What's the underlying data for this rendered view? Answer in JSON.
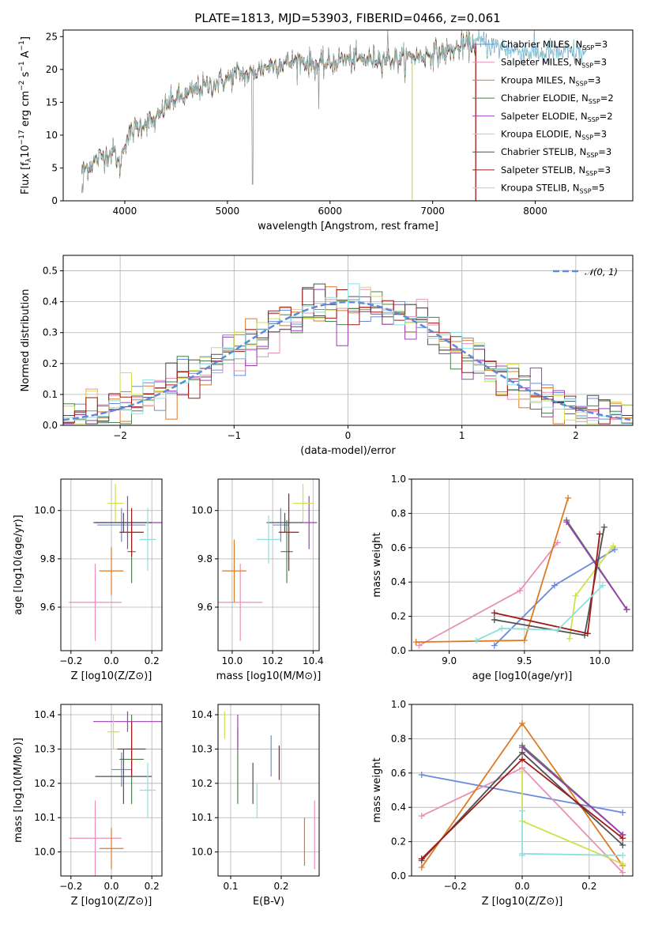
{
  "title": "PLATE=1813, MJD=53903, FIBERID=0466, z=0.061",
  "colors": {
    "Chabrier MILES": "#6a8bdb",
    "Salpeter MILES": "#e98fb8",
    "Kroupa MILES": "#de7a22",
    "Chabrier ELODIE": "#4e7f4e",
    "Salpeter ELODIE": "#9c3fb5",
    "Kroupa ELODIE": "#d2e04b",
    "Chabrier STELIB": "#505050",
    "Salpeter STELIB": "#a11a1a",
    "Kroupa STELIB": "#8ee0e0"
  },
  "chart_data": [
    {
      "id": "spectrum",
      "type": "line",
      "xlabel": "wavelength [Angstrom, rest frame]",
      "ylabel": "Flux [f_λ10^-17 erg cm^-2 s^-1 A^-1]",
      "xlim": [
        3400,
        8950
      ],
      "ylim": [
        0,
        26
      ],
      "xticks": [
        4000,
        5000,
        6000,
        7000,
        8000
      ],
      "yticks": [
        0,
        5,
        10,
        15,
        20,
        25
      ],
      "grid": false,
      "legend_position": "right",
      "legend": [
        {
          "name": "Chabrier MILES",
          "nssp": 3
        },
        {
          "name": "Salpeter MILES",
          "nssp": 3
        },
        {
          "name": "Kroupa MILES",
          "nssp": 3
        },
        {
          "name": "Chabrier ELODIE",
          "nssp": 2
        },
        {
          "name": "Salpeter ELODIE",
          "nssp": 2
        },
        {
          "name": "Kroupa ELODIE",
          "nssp": 3
        },
        {
          "name": "Chabrier STELIB",
          "nssp": 3
        },
        {
          "name": "Salpeter STELIB",
          "nssp": 3
        },
        {
          "name": "Kroupa STELIB",
          "nssp": 5
        }
      ],
      "continuum": [
        [
          3580,
          4.5
        ],
        [
          3700,
          6
        ],
        [
          3800,
          7
        ],
        [
          3900,
          7.5
        ],
        [
          3950,
          5
        ],
        [
          4000,
          9
        ],
        [
          4100,
          11
        ],
        [
          4200,
          12
        ],
        [
          4300,
          12
        ],
        [
          4400,
          14.5
        ],
        [
          4500,
          15.5
        ],
        [
          4600,
          16
        ],
        [
          4700,
          17
        ],
        [
          4800,
          17.5
        ],
        [
          4900,
          18
        ],
        [
          5000,
          18.5
        ],
        [
          5100,
          19.5
        ],
        [
          5200,
          19
        ],
        [
          5300,
          20
        ],
        [
          5400,
          20.5
        ],
        [
          5500,
          21
        ],
        [
          5600,
          21
        ],
        [
          5700,
          21.5
        ],
        [
          5800,
          21
        ],
        [
          5900,
          20.5
        ],
        [
          6000,
          21
        ],
        [
          6100,
          21.5
        ],
        [
          6200,
          21.5
        ],
        [
          6300,
          21.5
        ],
        [
          6400,
          21.5
        ],
        [
          6500,
          21.8
        ],
        [
          6600,
          21.5
        ],
        [
          6700,
          21.5
        ],
        [
          6800,
          22
        ],
        [
          6900,
          22
        ],
        [
          7000,
          22.5
        ],
        [
          7100,
          22.5
        ],
        [
          7200,
          23
        ],
        [
          7300,
          23.5
        ],
        [
          7400,
          24
        ],
        [
          7500,
          24
        ],
        [
          7600,
          23.5
        ],
        [
          7800,
          23
        ],
        [
          8000,
          22.5
        ],
        [
          8200,
          22.5
        ],
        [
          8500,
          22.5
        ]
      ]
    },
    {
      "id": "residuals",
      "type": "histogram",
      "xlabel": "(data-model)/error",
      "ylabel": "Normed distribution",
      "xlim": [
        -2.5,
        2.5
      ],
      "ylim": [
        0,
        0.55
      ],
      "xticks": [
        -2,
        -1,
        0,
        1,
        2
      ],
      "yticks": [
        0,
        0.1,
        0.2,
        0.3,
        0.4,
        0.5
      ],
      "grid": true,
      "reference_curve": {
        "name": "𝒩(0, 1)",
        "mean": 0,
        "sigma": 1
      },
      "legend_position": "top-right"
    },
    {
      "id": "z-age",
      "type": "scatter",
      "xlabel": "Z [log10(Z/Z⊙)]",
      "ylabel": "age  [log10(age/yr)]",
      "xlim": [
        -0.25,
        0.25
      ],
      "ylim": [
        9.42,
        10.13
      ],
      "xticks": [
        -0.2,
        0,
        0.2
      ],
      "yticks": [
        9.6,
        9.8,
        10.0
      ],
      "grid": true,
      "points": [
        {
          "s": "Chabrier MILES",
          "x": 0.05,
          "y": 9.94,
          "xe": 0.12,
          "ye": 0.07
        },
        {
          "s": "Salpeter MILES",
          "x": -0.08,
          "y": 9.62,
          "xe": 0.13,
          "ye": 0.16
        },
        {
          "s": "Kroupa MILES",
          "x": 0.0,
          "y": 9.75,
          "xe": 0.06,
          "ye": 0.1
        },
        {
          "s": "Chabrier ELODIE",
          "x": 0.1,
          "y": 9.83,
          "xe": 0.02,
          "ye": 0.13
        },
        {
          "s": "Salpeter ELODIE",
          "x": 0.08,
          "y": 9.95,
          "xe": 0.17,
          "ye": 0.11
        },
        {
          "s": "Kroupa ELODIE",
          "x": 0.02,
          "y": 10.03,
          "xe": 0.04,
          "ye": 0.08
        },
        {
          "s": "Chabrier STELIB",
          "x": 0.06,
          "y": 9.95,
          "xe": 0.14,
          "ye": 0.04
        },
        {
          "s": "Salpeter STELIB",
          "x": 0.1,
          "y": 9.91,
          "xe": 0.06,
          "ye": 0.1
        },
        {
          "s": "Kroupa STELIB",
          "x": 0.18,
          "y": 9.88,
          "xe": 0.04,
          "ye": 0.13
        }
      ]
    },
    {
      "id": "mass-age",
      "type": "scatter",
      "xlabel": "mass [log10(M/M⊙)]",
      "ylabel": "",
      "xlim": [
        9.93,
        10.43
      ],
      "ylim": [
        9.42,
        10.13
      ],
      "xticks": [
        10.0,
        10.2,
        10.4
      ],
      "yticks": [
        9.6,
        9.8,
        10.0
      ],
      "grid": true,
      "points": [
        {
          "s": "Chabrier MILES",
          "x": 10.24,
          "y": 9.94,
          "xe": 0.04,
          "ye": 0.07
        },
        {
          "s": "Salpeter MILES",
          "x": 10.04,
          "y": 9.62,
          "xe": 0.11,
          "ye": 0.16
        },
        {
          "s": "Kroupa MILES",
          "x": 10.01,
          "y": 9.75,
          "xe": 0.06,
          "ye": 0.13
        },
        {
          "s": "Chabrier ELODIE",
          "x": 10.27,
          "y": 9.83,
          "xe": 0.03,
          "ye": 0.13
        },
        {
          "s": "Salpeter ELODIE",
          "x": 10.38,
          "y": 9.95,
          "xe": 0.04,
          "ye": 0.11
        },
        {
          "s": "Kroupa ELODIE",
          "x": 10.35,
          "y": 10.03,
          "xe": 0.05,
          "ye": 0.08
        },
        {
          "s": "Chabrier STELIB",
          "x": 10.26,
          "y": 9.95,
          "xe": 0.09,
          "ye": 0.04
        },
        {
          "s": "Salpeter STELIB",
          "x": 10.28,
          "y": 9.91,
          "xe": 0.05,
          "ye": 0.16
        },
        {
          "s": "Kroupa STELIB",
          "x": 10.18,
          "y": 9.88,
          "xe": 0.06,
          "ye": 0.1
        }
      ]
    },
    {
      "id": "age-weight",
      "type": "line",
      "xlabel": "age  [log10(age/yr)]",
      "ylabel": "mass weight",
      "xlim": [
        8.75,
        10.22
      ],
      "ylim": [
        0,
        1.0
      ],
      "xticks": [
        9.0,
        9.5,
        10.0
      ],
      "yticks": [
        0.0,
        0.2,
        0.4,
        0.6,
        0.8,
        1.0
      ],
      "grid": true,
      "series": [
        {
          "s": "Chabrier MILES",
          "x": [
            9.3,
            9.7,
            10.1
          ],
          "y": [
            0.03,
            0.38,
            0.59
          ]
        },
        {
          "s": "Salpeter MILES",
          "x": [
            8.8,
            9.47,
            9.72
          ],
          "y": [
            0.03,
            0.35,
            0.63
          ]
        },
        {
          "s": "Kroupa MILES",
          "x": [
            8.78,
            9.5,
            9.79
          ],
          "y": [
            0.05,
            0.06,
            0.89
          ]
        },
        {
          "s": "Chabrier ELODIE",
          "x": [
            9.78,
            10.18
          ],
          "y": [
            0.76,
            0.24
          ]
        },
        {
          "s": "Salpeter ELODIE",
          "x": [
            9.78,
            10.18
          ],
          "y": [
            0.75,
            0.24
          ]
        },
        {
          "s": "Kroupa ELODIE",
          "x": [
            9.8,
            9.84,
            10.09
          ],
          "y": [
            0.07,
            0.32,
            0.61
          ]
        },
        {
          "s": "Chabrier STELIB",
          "x": [
            9.3,
            9.9,
            10.03
          ],
          "y": [
            0.18,
            0.09,
            0.72
          ]
        },
        {
          "s": "Salpeter STELIB",
          "x": [
            9.3,
            9.92,
            10.0
          ],
          "y": [
            0.22,
            0.1,
            0.68
          ]
        },
        {
          "s": "Kroupa STELIB",
          "x": [
            9.18,
            9.35,
            9.72,
            10.02
          ],
          "y": [
            0.06,
            0.13,
            0.12,
            0.38
          ]
        }
      ]
    },
    {
      "id": "z-mass",
      "type": "scatter",
      "xlabel": "Z [log10(Z/Z⊙)]",
      "ylabel": "mass [log10(M/M⊙)]",
      "xlim": [
        -0.25,
        0.25
      ],
      "ylim": [
        9.93,
        10.43
      ],
      "xticks": [
        -0.2,
        0,
        0.2
      ],
      "yticks": [
        10.0,
        10.1,
        10.2,
        10.3,
        10.4
      ],
      "grid": true,
      "points": [
        {
          "s": "Chabrier MILES",
          "x": 0.05,
          "y": 10.24,
          "xe": 0.05,
          "ye": 0.05
        },
        {
          "s": "Salpeter MILES",
          "x": -0.08,
          "y": 10.04,
          "xe": 0.13,
          "ye": 0.11
        },
        {
          "s": "Kroupa MILES",
          "x": 0.0,
          "y": 10.01,
          "xe": 0.06,
          "ye": 0.06
        },
        {
          "s": "Chabrier ELODIE",
          "x": 0.1,
          "y": 10.27,
          "xe": 0.06,
          "ye": 0.13
        },
        {
          "s": "Salpeter ELODIE",
          "x": 0.08,
          "y": 10.38,
          "xe": 0.17,
          "ye": 0.03
        },
        {
          "s": "Kroupa ELODIE",
          "x": 0.01,
          "y": 10.35,
          "xe": 0.03,
          "ye": 0.05
        },
        {
          "s": "Chabrier STELIB",
          "x": 0.06,
          "y": 10.22,
          "xe": 0.14,
          "ye": 0.08
        },
        {
          "s": "Salpeter STELIB",
          "x": 0.1,
          "y": 10.3,
          "xe": 0.07,
          "ye": 0.08
        },
        {
          "s": "Kroupa STELIB",
          "x": 0.18,
          "y": 10.18,
          "xe": 0.04,
          "ye": 0.08
        }
      ]
    },
    {
      "id": "ebv-mass",
      "type": "scatter",
      "xlabel": "E(B-V)",
      "ylabel": "",
      "xlim": [
        0.075,
        0.275
      ],
      "ylim": [
        9.93,
        10.43
      ],
      "xticks": [
        0.1,
        0.2
      ],
      "yticks": [
        10.0,
        10.1,
        10.2,
        10.3,
        10.4
      ],
      "grid": true,
      "points": [
        {
          "s": "Chabrier MILES",
          "x": 0.18,
          "y": 10.28,
          "xe": 0,
          "ye": 0.06
        },
        {
          "s": "Salpeter MILES",
          "x": 0.266,
          "y": 10.05,
          "xe": 0,
          "ye": 0.1
        },
        {
          "s": "Kroupa MILES",
          "x": 0.246,
          "y": 10.03,
          "xe": 0,
          "ye": 0.07
        },
        {
          "s": "Chabrier ELODIE",
          "x": 0.114,
          "y": 10.25,
          "xe": 0,
          "ye": 0.11
        },
        {
          "s": "Salpeter ELODIE",
          "x": 0.114,
          "y": 10.35,
          "xe": 0,
          "ye": 0.05
        },
        {
          "s": "Kroupa ELODIE",
          "x": 0.088,
          "y": 10.37,
          "xe": 0,
          "ye": 0.04
        },
        {
          "s": "Chabrier STELIB",
          "x": 0.144,
          "y": 10.2,
          "xe": 0,
          "ye": 0.06
        },
        {
          "s": "Salpeter STELIB",
          "x": 0.196,
          "y": 10.26,
          "xe": 0,
          "ye": 0.05
        },
        {
          "s": "Kroupa STELIB",
          "x": 0.152,
          "y": 10.15,
          "xe": 0,
          "ye": 0.05
        }
      ]
    },
    {
      "id": "z-weight",
      "type": "line",
      "xlabel": "Z [log10(Z/Z⊙)]",
      "ylabel": "mass weight",
      "xlim": [
        -0.33,
        0.33
      ],
      "ylim": [
        0,
        1.0
      ],
      "xticks": [
        -0.2,
        0.0,
        0.2
      ],
      "yticks": [
        0.0,
        0.2,
        0.4,
        0.6,
        0.8,
        1.0
      ],
      "grid": true,
      "series": [
        {
          "s": "Chabrier MILES",
          "x": [
            -0.3,
            0.3
          ],
          "y": [
            0.59,
            0.37
          ]
        },
        {
          "s": "Salpeter MILES",
          "x": [
            -0.3,
            0.0,
            0.3
          ],
          "y": [
            0.35,
            0.63,
            0.02
          ]
        },
        {
          "s": "Kroupa MILES",
          "x": [
            -0.3,
            0.0,
            0.3
          ],
          "y": [
            0.05,
            0.89,
            0.06
          ]
        },
        {
          "s": "Chabrier ELODIE",
          "x": [
            0.0,
            0.3
          ],
          "y": [
            0.76,
            0.24
          ]
        },
        {
          "s": "Salpeter ELODIE",
          "x": [
            0.0,
            0.3
          ],
          "y": [
            0.75,
            0.24
          ]
        },
        {
          "s": "Kroupa ELODIE",
          "x": [
            0.0,
            0.0,
            0.3
          ],
          "y": [
            0.61,
            0.32,
            0.07
          ]
        },
        {
          "s": "Chabrier STELIB",
          "x": [
            -0.3,
            0.0,
            0.3
          ],
          "y": [
            0.09,
            0.72,
            0.18
          ]
        },
        {
          "s": "Salpeter STELIB",
          "x": [
            -0.3,
            0.0,
            0.3
          ],
          "y": [
            0.1,
            0.68,
            0.22
          ]
        },
        {
          "s": "Kroupa STELIB",
          "x": [
            0.0,
            0.0,
            0.0,
            0.3
          ],
          "y": [
            0.38,
            0.12,
            0.13,
            0.12
          ]
        }
      ]
    }
  ]
}
